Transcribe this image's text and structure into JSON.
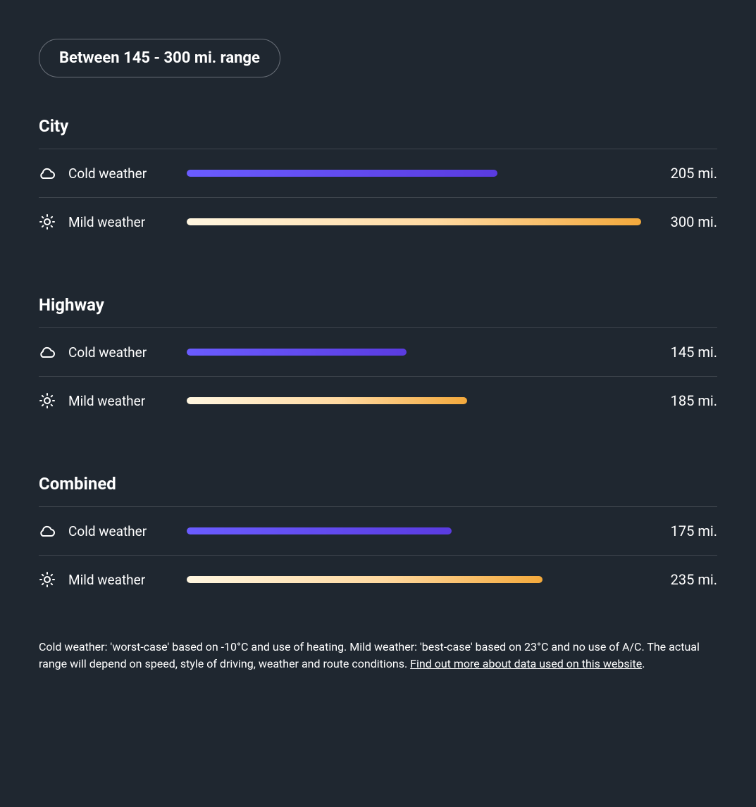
{
  "header": {
    "pill_label": "Between 145 - 300 mi. range"
  },
  "max_range": 300,
  "unit": "mi.",
  "cold_bar_gradient": [
    "#6a5cff",
    "#5a3be0"
  ],
  "mild_bar_gradient": [
    "#fff6e0",
    "#ffd9a0",
    "#f3a93c"
  ],
  "background_color": "#1f2730",
  "divider_color": "#3e454d",
  "sections": [
    {
      "title": "City",
      "rows": [
        {
          "icon": "cloud",
          "label": "Cold weather",
          "value": 205,
          "value_text": "205 mi.",
          "bar_class": "bar-cold"
        },
        {
          "icon": "sun",
          "label": "Mild weather",
          "value": 300,
          "value_text": "300 mi.",
          "bar_class": "bar-mild"
        }
      ]
    },
    {
      "title": "Highway",
      "rows": [
        {
          "icon": "cloud",
          "label": "Cold weather",
          "value": 145,
          "value_text": "145 mi.",
          "bar_class": "bar-cold"
        },
        {
          "icon": "sun",
          "label": "Mild weather",
          "value": 185,
          "value_text": "185 mi.",
          "bar_class": "bar-mild"
        }
      ]
    },
    {
      "title": "Combined",
      "rows": [
        {
          "icon": "cloud",
          "label": "Cold weather",
          "value": 175,
          "value_text": "175 mi.",
          "bar_class": "bar-cold"
        },
        {
          "icon": "sun",
          "label": "Mild weather",
          "value": 235,
          "value_text": "235 mi.",
          "bar_class": "bar-mild"
        }
      ]
    }
  ],
  "footnote": {
    "text_before_link": "Cold weather: 'worst-case' based on -10°C and use of heating. Mild weather: 'best-case' based on 23°C and no use of A/C. The actual range will depend on speed, style of driving, weather and route conditions. ",
    "link_text": "Find out more about data used on this website",
    "text_after_link": "."
  }
}
